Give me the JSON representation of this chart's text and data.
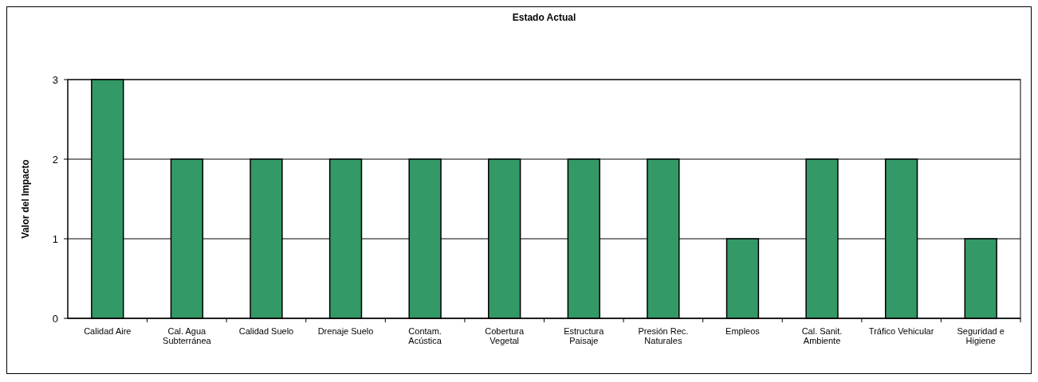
{
  "chart_data": {
    "type": "bar",
    "title": "Estado Actual",
    "ylabel": "Valor del Impacto",
    "categories": [
      "Calidad Aire",
      "Cal. Agua Subterránea",
      "Calidad Suelo",
      "Drenaje Suelo",
      "Contam. Acústica",
      "Cobertura Vegetal",
      "Estructura Paisaje",
      "Presión Rec. Naturales",
      "Empleos",
      "Cal. Sanit. Ambiente",
      "Tráfico Vehicular",
      "Seguridad e Higiene"
    ],
    "values": [
      3,
      2,
      2,
      2,
      2,
      2,
      2,
      2,
      1,
      2,
      2,
      1
    ],
    "color": "#339966",
    "ylim": [
      0,
      3
    ],
    "yticks": [
      0,
      1,
      2,
      3
    ],
    "grid": "y"
  }
}
